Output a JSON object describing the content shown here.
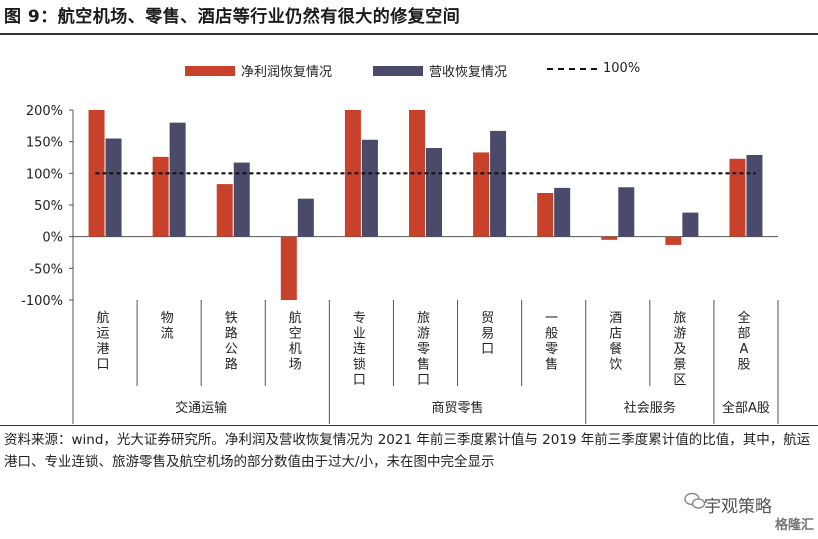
{
  "title": "图 9：航空机场、零售、酒店等行业仍然有很大的修复空间",
  "note": "资料来源：wind，光大证券研究所。净利润及营收恢复情况为 2021 年前三季度累计值与 2019 年前三季度累计值的比值，其中，航运港口、专业连锁、旅游零售及航空机场的部分数值由于过大/小，未在图中完全显示",
  "watermark": "宇观策略",
  "watermark2": "格隆汇",
  "colors": {
    "series1": "#c8412b",
    "series2": "#4a4a6a",
    "reference": "#111111"
  },
  "chart_data": {
    "type": "bar",
    "categories": [
      "航运港口",
      "物流",
      "铁路公路",
      "航空机场",
      "专业连锁口",
      "旅游零售口",
      "贸易口",
      "一般零售",
      "酒店餐饮",
      "旅游及景区",
      "全部A股"
    ],
    "groups": [
      {
        "label": "交通运输",
        "count": 4
      },
      {
        "label": "商贸零售",
        "count": 4
      },
      {
        "label": "社会服务",
        "count": 2
      },
      {
        "label": "全部A股",
        "count": 1
      }
    ],
    "series": [
      {
        "name": "净利润恢复情况",
        "values": [
          200,
          126,
          83,
          -100,
          200,
          200,
          133,
          69,
          -5,
          -13,
          123
        ]
      },
      {
        "name": "营收恢复情况",
        "values": [
          155,
          180,
          117,
          60,
          153,
          140,
          167,
          77,
          78,
          38,
          129
        ]
      }
    ],
    "reference_line": {
      "name": "100%",
      "value": 100
    },
    "yticks": [
      "200%",
      "150%",
      "100%",
      "50%",
      "0%",
      "-50%",
      "-100%"
    ],
    "ylim": [
      -100,
      200
    ],
    "grid": false,
    "legend": "top"
  }
}
